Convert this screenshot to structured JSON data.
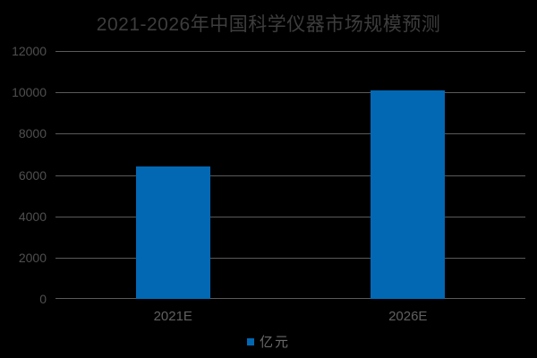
{
  "chart_data": {
    "type": "bar",
    "title": "2021-2026年中国科学仪器市场规模预测",
    "categories": [
      "2021E",
      "2026E"
    ],
    "series": [
      {
        "name": "亿元",
        "values": [
          6400,
          10100
        ]
      }
    ],
    "xlabel": "",
    "ylabel": "",
    "ylim": [
      0,
      12000
    ],
    "ytick_interval": 2000,
    "yticks": [
      "12000",
      "10000",
      "8000",
      "6000",
      "4000",
      "2000",
      "0"
    ],
    "legend": [
      "亿元"
    ],
    "legend_position": "bottom-center",
    "grid": true,
    "background": "black"
  },
  "colors": {
    "background": "#000000",
    "bar": "#0268b4",
    "title_text": "#3d3d3d",
    "y_label_text": "#4f4f4f",
    "x_label_text": "#606060",
    "legend_text": "#6a6a6a",
    "gridline": "#5a5a5a"
  }
}
